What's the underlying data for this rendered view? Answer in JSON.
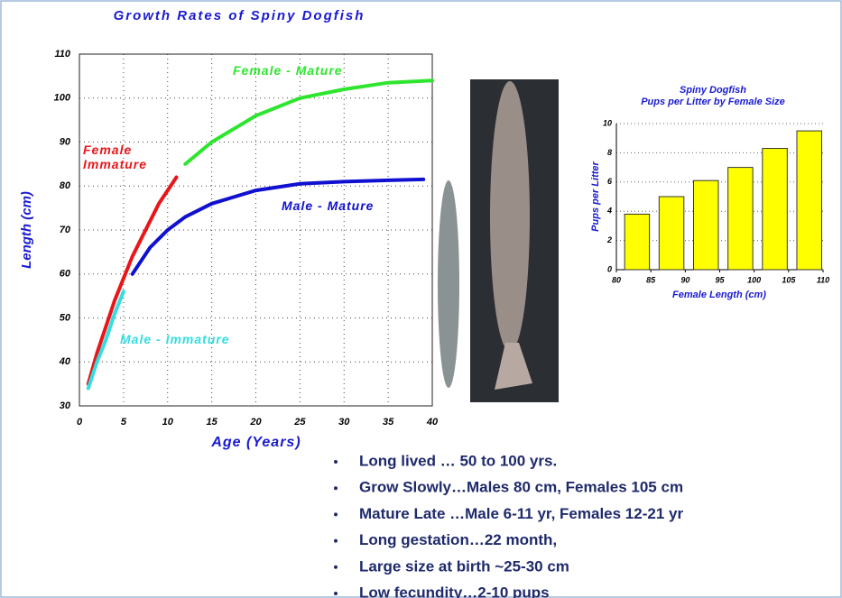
{
  "chart_data": [
    {
      "type": "line",
      "title": "Growth Rates of Spiny Dogfish",
      "xlabel": "Age (Years)",
      "ylabel": "Length (cm)",
      "xlim": [
        0,
        40
      ],
      "xticks": [
        0,
        5,
        10,
        15,
        20,
        25,
        30,
        35,
        40
      ],
      "ylim": [
        30,
        110
      ],
      "yticks": [
        30,
        40,
        50,
        60,
        70,
        80,
        90,
        100,
        110
      ],
      "grid": true,
      "series": [
        {
          "name": "Female Immature",
          "color": "#e8161b",
          "x": [
            1,
            2,
            3,
            4,
            5,
            6,
            7,
            8,
            9,
            10,
            11
          ],
          "values": [
            35,
            42,
            48,
            54,
            59,
            64,
            68,
            72,
            76,
            79,
            82
          ]
        },
        {
          "name": "Female - Mature",
          "color": "#2ee52e",
          "x": [
            12,
            15,
            20,
            25,
            30,
            35,
            40
          ],
          "values": [
            85,
            90,
            96,
            100,
            102,
            103.5,
            104
          ]
        },
        {
          "name": "Male - Mature",
          "color": "#1010d0",
          "x": [
            6,
            8,
            10,
            12,
            15,
            20,
            25,
            30,
            35,
            39
          ],
          "values": [
            60,
            66,
            70,
            73,
            76,
            79,
            80.5,
            81,
            81.3,
            81.5
          ]
        },
        {
          "name": "Male - Immature",
          "color": "#33dde0",
          "x": [
            1,
            2,
            3,
            4,
            5
          ],
          "values": [
            34,
            40,
            45,
            51,
            56
          ]
        }
      ]
    },
    {
      "type": "bar",
      "title": "Spiny Dogfish",
      "subtitle": "Pups per Litter by Female Size",
      "xlabel": "Female Length (cm)",
      "ylabel": "Pups per Litter",
      "xlim": [
        80,
        110
      ],
      "xticks": [
        80,
        85,
        90,
        95,
        100,
        105,
        110
      ],
      "ylim": [
        0,
        10
      ],
      "yticks": [
        0,
        2,
        4,
        6,
        8,
        10
      ],
      "grid": true,
      "color": "#ffff00",
      "x": [
        83,
        88,
        93,
        98,
        103,
        108
      ],
      "values": [
        3.8,
        5.0,
        6.1,
        7.0,
        8.3,
        9.5
      ]
    }
  ],
  "bullets": [
    "Long lived … 50 to 100 yrs.",
    "Grow Slowly…Males 80 cm,  Females 105 cm",
    "Mature Late …Male 6-11 yr, Females 12-21 yr",
    "Long gestation…22 month,",
    "Large size at birth ~25-30 cm",
    "Low fecundity…2-10 pups"
  ]
}
